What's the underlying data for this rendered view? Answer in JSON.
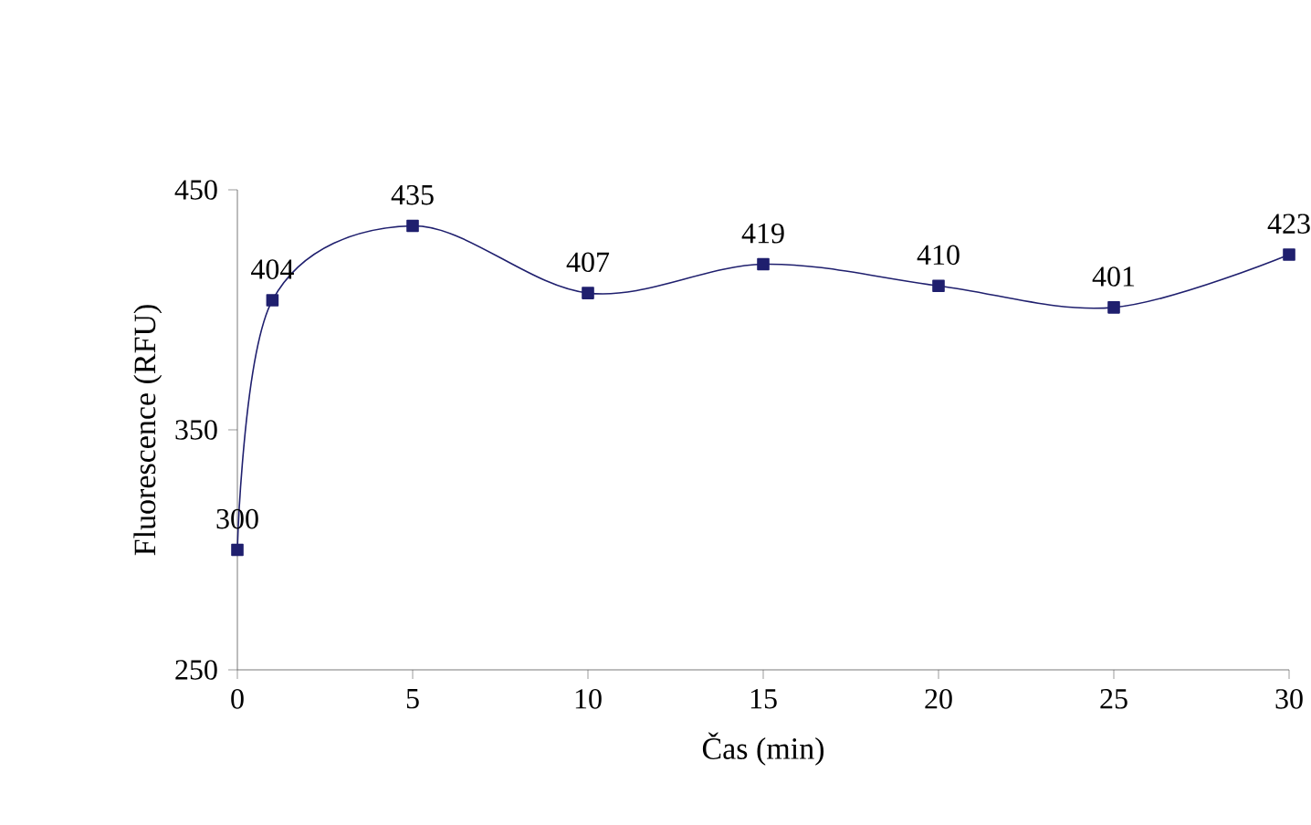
{
  "chart_data": {
    "type": "line",
    "xlabel": "Čas (min)",
    "ylabel": "Fluorescence (RFU)",
    "x": [
      0,
      1,
      5,
      10,
      15,
      20,
      25,
      30
    ],
    "values": [
      300,
      404,
      435,
      407,
      419,
      410,
      401,
      423
    ],
    "color": "#1f1f6e",
    "marker": "square",
    "data_labels": true,
    "grid": false,
    "xlim": [
      0,
      30
    ],
    "xticks": [
      0,
      5,
      10,
      15,
      20,
      25,
      30
    ],
    "ylim": [
      250,
      450
    ],
    "yticks": [
      250,
      350,
      450
    ]
  }
}
